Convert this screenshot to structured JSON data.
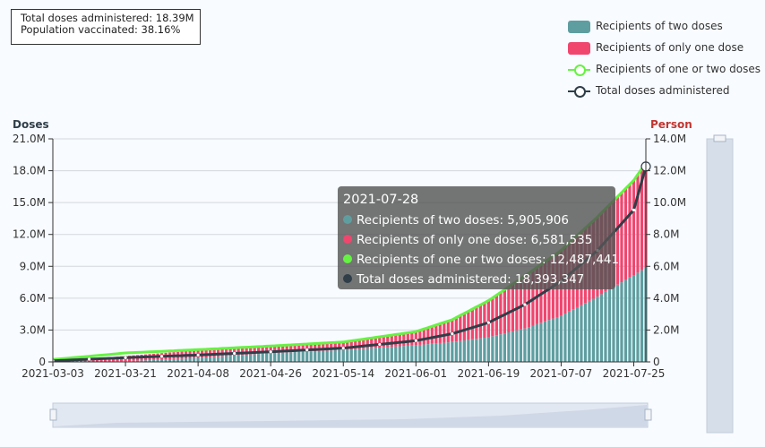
{
  "stats": {
    "total_doses": "Total doses administered: 18.39M",
    "population_vaccinated": "Population vaccinated: 38.16%"
  },
  "legend": [
    {
      "label": "Recipients of two doses",
      "color": "#5f9ea0",
      "kind": "bar"
    },
    {
      "label": "Recipients of only one dose",
      "color": "#f0466e",
      "kind": "bar"
    },
    {
      "label": "Recipients of one or two doses",
      "color": "#66f243",
      "kind": "line"
    },
    {
      "label": "Total doses administered",
      "color": "#2f3e48",
      "kind": "line"
    }
  ],
  "tooltip": {
    "date": "2021-07-28",
    "rows": [
      {
        "text": "Recipients of two doses: 5,905,906",
        "color": "#5f9ea0"
      },
      {
        "text": "Recipients of only one dose: 6,581,535",
        "color": "#f0466e"
      },
      {
        "text": "Recipients of one or two doses: 12,487,441",
        "color": "#66f243"
      },
      {
        "text": "Total doses administered: 18,393,347",
        "color": "#2f3e48"
      }
    ]
  },
  "chart_data": {
    "type": "bar",
    "y_left_label": "Doses",
    "y_right_label": "Person",
    "y_left_ticks": [
      "0",
      "3.0M",
      "6.0M",
      "9.0M",
      "12.0M",
      "15.0M",
      "18.0M",
      "21.0M"
    ],
    "y_right_ticks": [
      "0",
      "2.0M",
      "4.0M",
      "6.0M",
      "8.0M",
      "10.0M",
      "12.0M",
      "14.0M"
    ],
    "y_left_range": [
      0,
      21000000
    ],
    "y_right_range": [
      0,
      14000000
    ],
    "x_range": [
      "2021-03-03",
      "2021-07-28"
    ],
    "x_ticks": [
      "2021-03-03",
      "2021-03-21",
      "2021-04-08",
      "2021-04-26",
      "2021-05-14",
      "2021-06-01",
      "2021-06-19",
      "2021-07-07",
      "2021-07-25"
    ],
    "grid": true,
    "legend_position": "top-right",
    "anchors": {
      "dates": [
        "2021-03-03",
        "2021-03-21",
        "2021-04-08",
        "2021-04-26",
        "2021-05-14",
        "2021-06-01",
        "2021-06-10",
        "2021-06-19",
        "2021-06-28",
        "2021-07-07",
        "2021-07-16",
        "2021-07-25",
        "2021-07-28"
      ],
      "two_doses": [
        0,
        40000,
        250000,
        550000,
        750000,
        1050000,
        1250000,
        1550000,
        2100000,
        2900000,
        4100000,
        5450000,
        5905906
      ],
      "one_dose": [
        10000,
        330000,
        480000,
        460000,
        500000,
        850000,
        1400000,
        2300000,
        3300000,
        4100000,
        5000000,
        5950000,
        6581535
      ],
      "one_or_two": [
        150000,
        560000,
        770000,
        1000000,
        1250000,
        1900000,
        2650000,
        3850000,
        5400000,
        7000000,
        9100000,
        11400000,
        12487441
      ],
      "total_doses": [
        100000,
        400000,
        650000,
        950000,
        1300000,
        2000000,
        2650000,
        3700000,
        5400000,
        7600000,
        10500000,
        14300000,
        18393347
      ]
    }
  }
}
